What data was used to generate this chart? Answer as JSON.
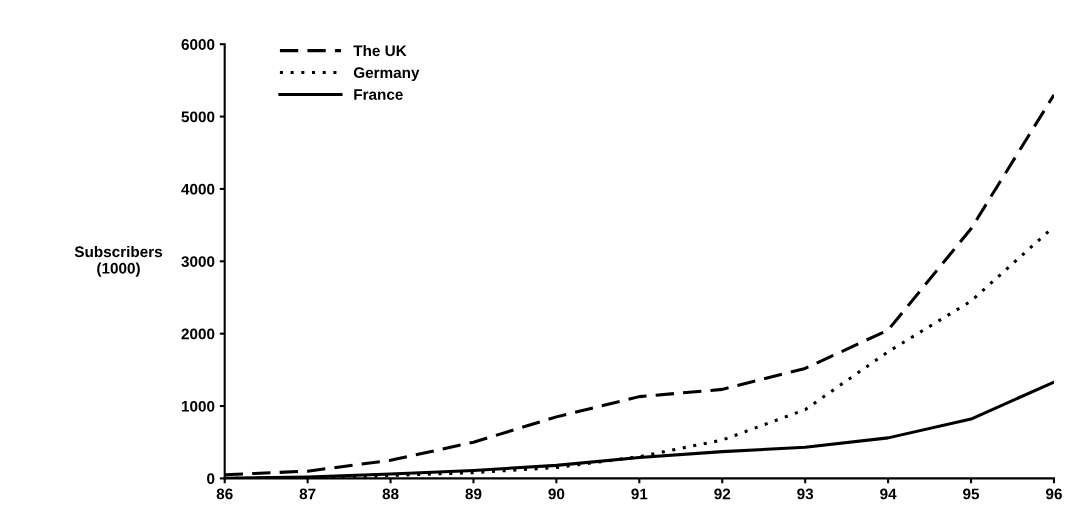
{
  "chart_data": {
    "type": "line",
    "ylabel": "Subscribers\n(1000)",
    "categories": [
      "86",
      "87",
      "88",
      "89",
      "90",
      "91",
      "92",
      "93",
      "94",
      "95",
      "96"
    ],
    "series": [
      {
        "name": "The UK",
        "color": "#000000",
        "line_style": "dashed",
        "values": [
          50,
          100,
          250,
          500,
          850,
          1130,
          1230,
          1520,
          2050,
          3450,
          5300
        ]
      },
      {
        "name": "Germany",
        "color": "#000000",
        "line_style": "dotted",
        "values": [
          0,
          10,
          40,
          80,
          150,
          300,
          530,
          950,
          1750,
          2450,
          3480
        ]
      },
      {
        "name": "France",
        "color": "#000000",
        "line_style": "solid",
        "values": [
          0,
          20,
          60,
          110,
          180,
          290,
          370,
          430,
          560,
          820,
          1330
        ]
      }
    ],
    "ylim": [
      0,
      6000
    ],
    "yticks": [
      0,
      1000,
      2000,
      3000,
      4000,
      5000,
      6000
    ],
    "grid": false,
    "legend": "top left",
    "marker": "none"
  }
}
